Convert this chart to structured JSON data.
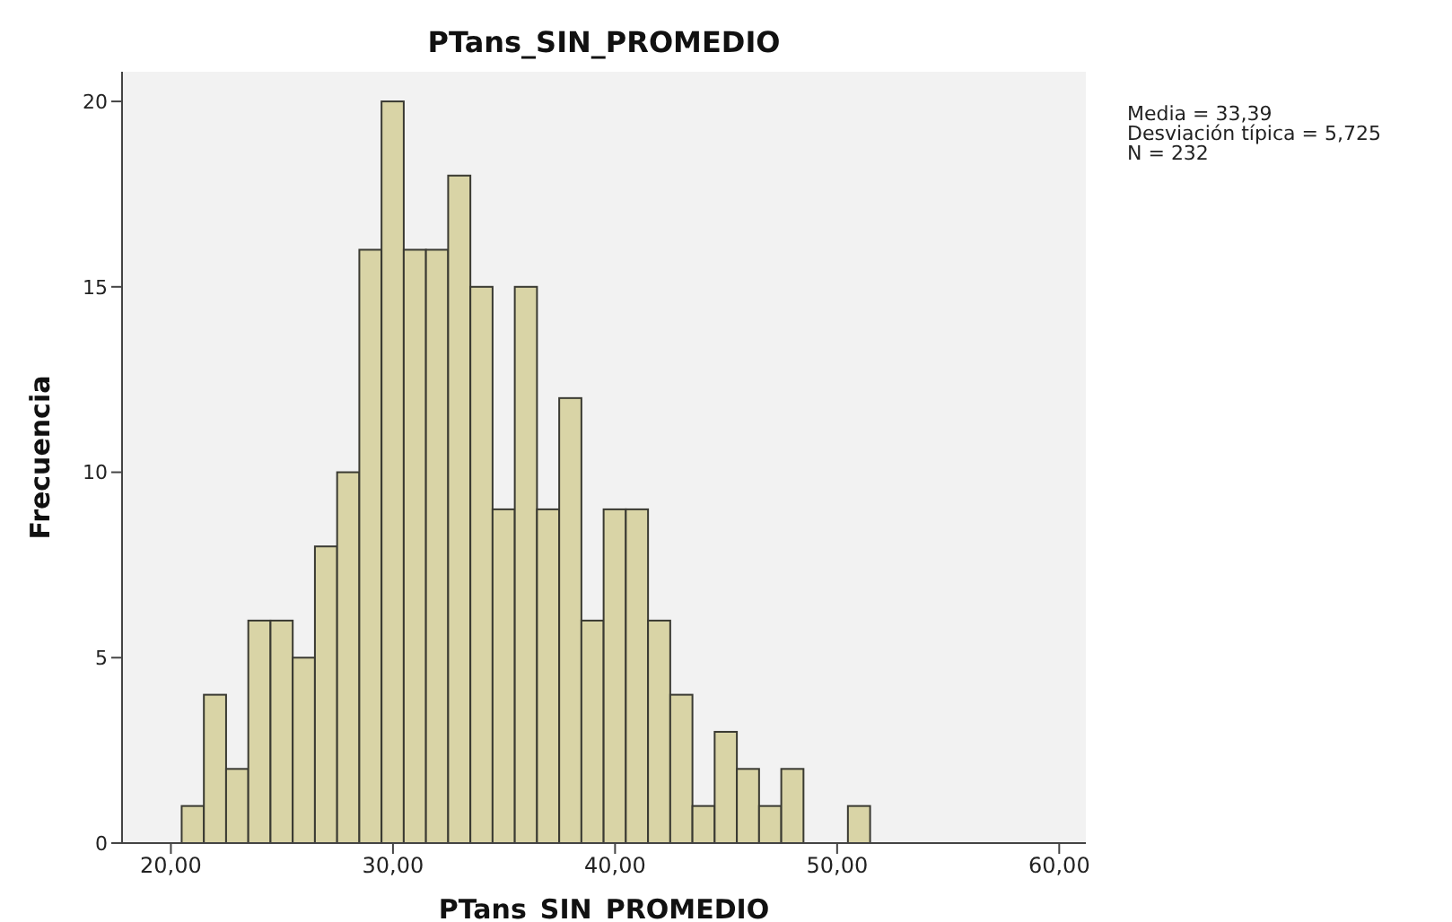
{
  "chart_data": {
    "type": "histogram",
    "title": "PTans_SIN_PROMEDIO",
    "xlabel": "PTans_SIN_PROMEDIO",
    "ylabel": "Frecuencia",
    "annotations": [
      "Media = 33,39",
      "Desviación típica = 5,725",
      "N = 232"
    ],
    "bins": [
      20.5,
      21.5,
      22.5,
      23.5,
      24.5,
      25.5,
      26.5,
      27.5,
      28.5,
      29.5,
      30.5,
      31.5,
      32.5,
      33.5,
      34.5,
      35.5,
      36.5,
      37.5,
      38.5,
      39.5,
      40.5,
      41.5,
      42.5,
      43.5,
      44.5,
      45.5,
      46.5,
      47.5,
      48.5,
      49.5,
      50.5,
      51.5
    ],
    "values": [
      1,
      4,
      2,
      6,
      6,
      5,
      8,
      10,
      16,
      20,
      16,
      16,
      18,
      15,
      9,
      15,
      9,
      12,
      6,
      9,
      9,
      6,
      4,
      1,
      3,
      2,
      1,
      2,
      0,
      0,
      1
    ],
    "color": "#d9d4a6",
    "xlim": [
      17.8,
      61.2
    ],
    "xticks": [
      {
        "value": 20,
        "label": "20,00"
      },
      {
        "value": 30,
        "label": "30,00"
      },
      {
        "value": 40,
        "label": "40,00"
      },
      {
        "value": 50,
        "label": "50,00"
      },
      {
        "value": 60,
        "label": "60,00"
      }
    ],
    "ylim": [
      0,
      20.8
    ],
    "yticks": [
      0,
      5,
      10,
      15,
      20
    ],
    "grid": false
  }
}
